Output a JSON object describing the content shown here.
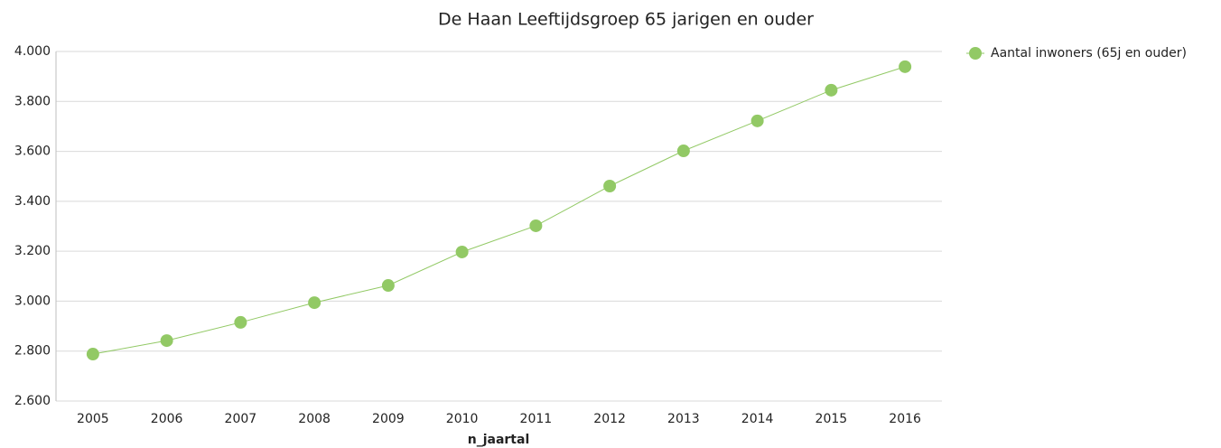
{
  "chart_data": {
    "type": "line",
    "title": "De Haan  Leeftijdsgroep 65 jarigen en ouder",
    "x_label": "n_jaartal",
    "categories": [
      "2005",
      "2006",
      "2007",
      "2008",
      "2009",
      "2010",
      "2011",
      "2012",
      "2013",
      "2014",
      "2015",
      "2016"
    ],
    "series": [
      {
        "name": "Aantal inwoners (65j en ouder)",
        "color": "#92c965",
        "values": [
          2788,
          2842,
          2915,
          2994,
          3063,
          3197,
          3302,
          3461,
          3602,
          3722,
          3845,
          3939
        ]
      }
    ],
    "ylim": [
      2600,
      4000
    ],
    "yticks": [
      {
        "value": 2600,
        "label": "2.600"
      },
      {
        "value": 2800,
        "label": "2.800"
      },
      {
        "value": 3000,
        "label": "3.000"
      },
      {
        "value": 3200,
        "label": "3.200"
      },
      {
        "value": 3400,
        "label": "3.400"
      },
      {
        "value": 3600,
        "label": "3.600"
      },
      {
        "value": 3800,
        "label": "3.800"
      },
      {
        "value": 4000,
        "label": "4.000"
      }
    ],
    "grid": true,
    "legend": "right"
  }
}
